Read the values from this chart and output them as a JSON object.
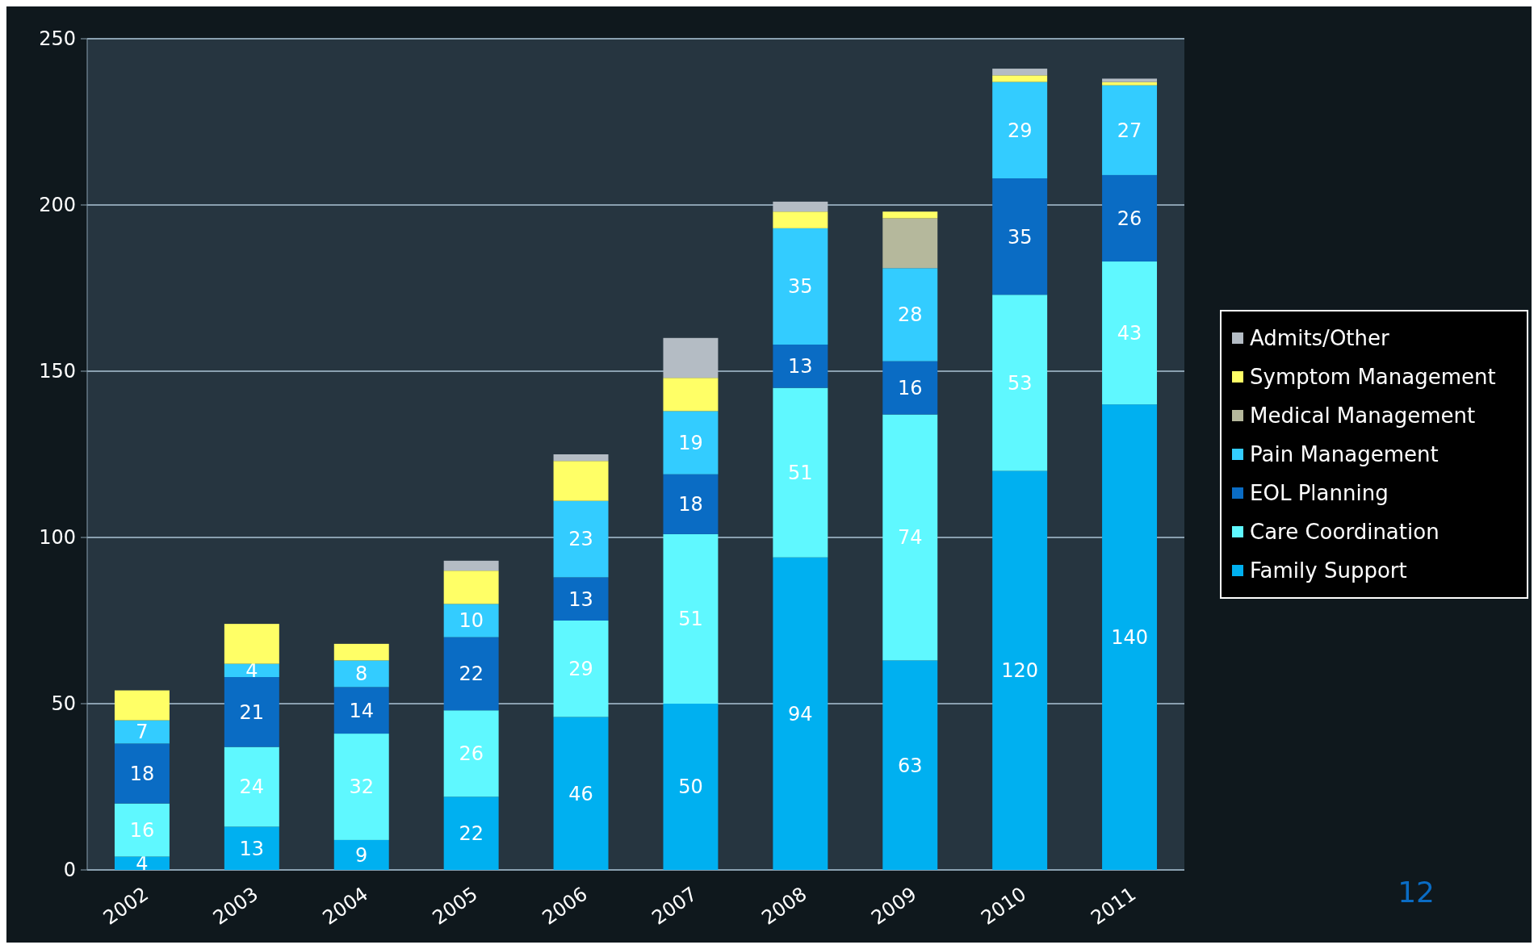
{
  "chart_data": {
    "type": "bar",
    "stacked": true,
    "categories": [
      "2002",
      "2003",
      "2004",
      "2005",
      "2006",
      "2007",
      "2008",
      "2009",
      "2010",
      "2011"
    ],
    "series": [
      {
        "name": "Family Support",
        "color": "#00b0f0",
        "values": [
          4,
          13,
          9,
          22,
          46,
          50,
          94,
          63,
          120,
          140
        ],
        "value_labels": [
          "4",
          "13",
          "9",
          "22",
          "46",
          "50",
          "94",
          "63",
          "120",
          "140"
        ]
      },
      {
        "name": "Care Coordination",
        "color": "#5ff8ff",
        "values": [
          16,
          24,
          32,
          26,
          29,
          51,
          51,
          74,
          53,
          43
        ],
        "value_labels": [
          "16",
          "24",
          "32",
          "26",
          "29",
          "51",
          "51",
          "74",
          "53",
          "43"
        ]
      },
      {
        "name": "EOL Planning",
        "color": "#0a6cc4",
        "values": [
          18,
          21,
          14,
          22,
          13,
          18,
          13,
          16,
          35,
          26
        ],
        "value_labels": [
          "18",
          "21",
          "14",
          "22",
          "13",
          "18",
          "13",
          "16",
          "35",
          "26"
        ]
      },
      {
        "name": "Pain Management",
        "color": "#33ccff",
        "values": [
          7,
          4,
          8,
          10,
          23,
          19,
          35,
          28,
          29,
          27
        ],
        "value_labels": [
          "7",
          "4",
          "8",
          "10",
          "23",
          "19",
          "35",
          "28",
          "29",
          "27"
        ]
      },
      {
        "name": "Medical Management",
        "color": "#b5b89c",
        "values": [
          0,
          0,
          0,
          0,
          0,
          0,
          0,
          15,
          0,
          0
        ],
        "value_labels": [
          null,
          null,
          null,
          null,
          null,
          null,
          null,
          null,
          null,
          null
        ]
      },
      {
        "name": "Symptom Management",
        "color": "#ffff66",
        "values": [
          9,
          12,
          5,
          10,
          12,
          10,
          5,
          2,
          2,
          1
        ],
        "value_labels": [
          null,
          null,
          null,
          null,
          null,
          null,
          null,
          null,
          null,
          null
        ]
      },
      {
        "name": "Admits/Other",
        "color": "#b4bcc4",
        "values": [
          0,
          0,
          0,
          3,
          2,
          12,
          3,
          0,
          2,
          1
        ],
        "value_labels": [
          null,
          null,
          null,
          null,
          null,
          null,
          null,
          null,
          null,
          null
        ]
      }
    ],
    "ylim": [
      0,
      250
    ],
    "yticks": [
      0,
      50,
      100,
      150,
      200,
      250
    ],
    "grid": "y",
    "legend": "right",
    "annotations": [
      "12"
    ]
  }
}
